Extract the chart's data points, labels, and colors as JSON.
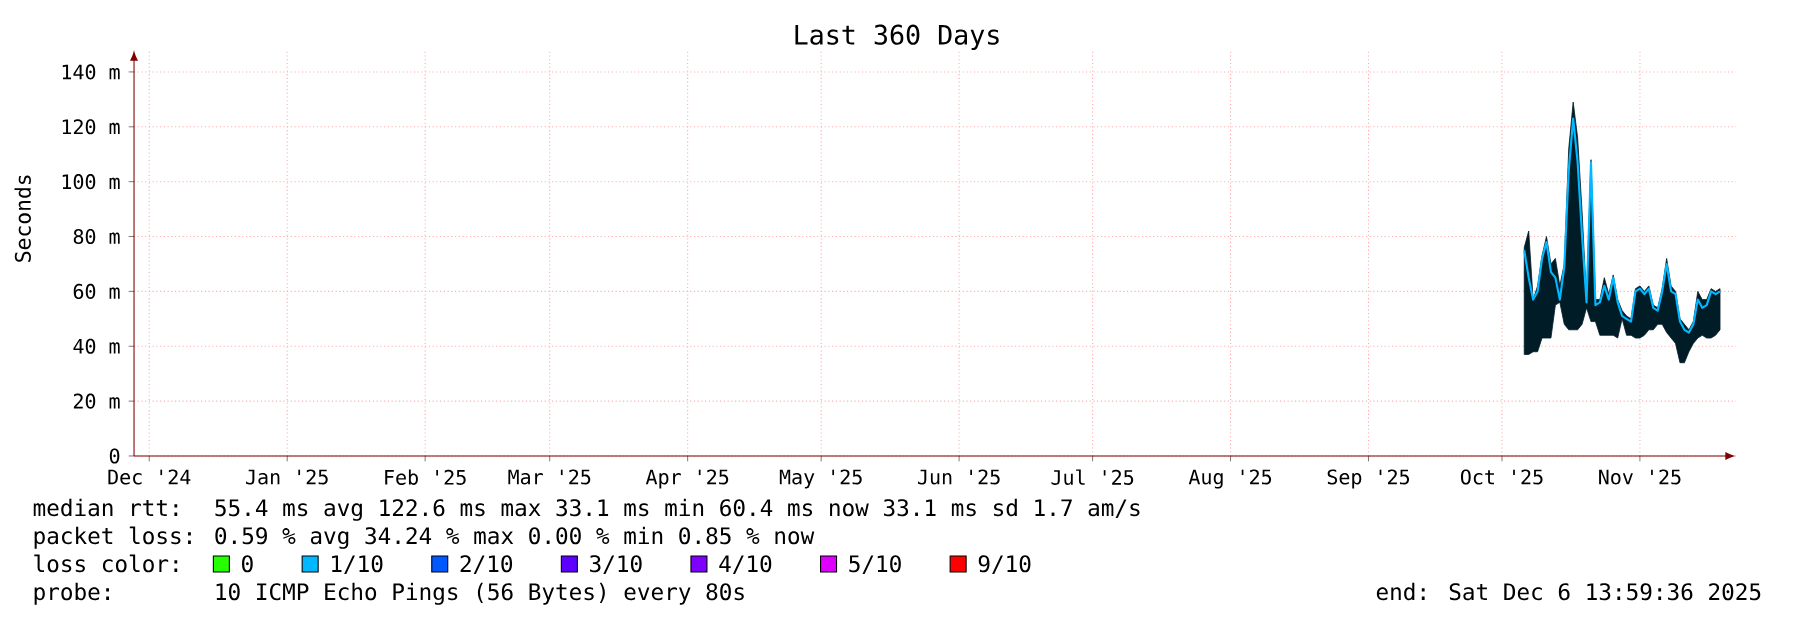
{
  "chart_data": {
    "type": "line",
    "title": "Last 360 Days",
    "ylabel": "Seconds",
    "legend_title": "loss color:",
    "x": [
      "2025-10-20",
      "2025-10-21",
      "2025-10-22",
      "2025-10-23",
      "2025-10-24",
      "2025-10-25",
      "2025-10-26",
      "2025-10-27",
      "2025-10-28",
      "2025-10-29",
      "2025-10-30",
      "2025-10-31",
      "2025-11-01",
      "2025-11-02",
      "2025-11-03",
      "2025-11-04",
      "2025-11-05",
      "2025-11-06",
      "2025-11-07",
      "2025-11-08",
      "2025-11-09",
      "2025-11-10",
      "2025-11-11",
      "2025-11-12",
      "2025-11-13",
      "2025-11-14",
      "2025-11-15",
      "2025-11-16",
      "2025-11-17",
      "2025-11-18",
      "2025-11-19",
      "2025-11-20",
      "2025-11-21",
      "2025-11-22",
      "2025-11-23",
      "2025-11-24",
      "2025-11-25",
      "2025-11-26",
      "2025-11-27",
      "2025-11-28",
      "2025-11-29",
      "2025-11-30",
      "2025-12-01",
      "2025-12-02",
      "2025-12-03"
    ],
    "series": [
      {
        "color": "#00b8ff",
        "values": [
          75,
          65,
          57,
          60,
          72,
          78,
          67,
          65,
          57,
          69,
          104,
          123,
          107,
          80,
          56,
          107,
          55,
          56,
          62,
          57,
          65,
          56,
          51,
          50,
          49,
          60,
          61,
          59,
          61,
          54,
          53,
          60,
          70,
          60,
          59,
          49,
          46,
          45,
          48,
          57,
          54,
          55,
          60,
          59,
          60
        ],
        "lower": [
          37,
          37,
          38,
          38,
          43,
          43,
          43,
          55,
          56,
          48,
          46,
          46,
          46,
          48,
          54,
          49,
          49,
          44,
          44,
          44,
          44,
          43,
          50,
          44,
          44,
          43,
          43,
          44,
          46,
          46,
          48,
          48,
          45,
          43,
          41,
          34,
          34,
          38,
          41,
          43,
          44,
          43,
          43,
          44,
          46
        ],
        "upper": [
          76,
          82,
          57,
          62,
          73,
          80,
          70,
          72,
          62,
          70,
          112,
          129,
          116,
          89,
          57,
          108,
          57,
          57,
          65,
          59,
          66,
          57,
          53,
          51,
          50,
          61,
          62,
          60,
          62,
          55,
          54,
          61,
          72,
          62,
          60,
          50,
          48,
          46,
          49,
          60,
          57,
          57,
          61,
          60,
          61
        ]
      },
      {
        "name": "0",
        "color": "#26ff00",
        "values": [
          null,
          null,
          null,
          null,
          null,
          null,
          null,
          null,
          null,
          null,
          null,
          null,
          null,
          null,
          null,
          null,
          null,
          null,
          null,
          null,
          null,
          null,
          null,
          null,
          null,
          null,
          null,
          null,
          null,
          null,
          null,
          null,
          null,
          null,
          null,
          null,
          null,
          null,
          null,
          null,
          null,
          null,
          null,
          null,
          null
        ]
      },
      {
        "name": "1/10",
        "color": "#00b8ff",
        "values": [
          null,
          null,
          null,
          null,
          null,
          null,
          null,
          null,
          null,
          null,
          null,
          null,
          null,
          null,
          null,
          null,
          null,
          null,
          null,
          null,
          null,
          null,
          null,
          null,
          null,
          null,
          null,
          null,
          null,
          null,
          null,
          null,
          null,
          null,
          null,
          null,
          null,
          null,
          null,
          null,
          null,
          null,
          null,
          null,
          null
        ]
      },
      {
        "name": "2/10",
        "color": "#0059ff",
        "values": [
          null,
          null,
          null,
          null,
          null,
          null,
          null,
          null,
          null,
          null,
          null,
          null,
          null,
          null,
          null,
          null,
          null,
          null,
          null,
          null,
          null,
          null,
          null,
          null,
          null,
          null,
          null,
          null,
          null,
          null,
          null,
          null,
          null,
          null,
          null,
          null,
          null,
          null,
          null,
          null,
          null,
          null,
          null,
          null,
          null
        ]
      },
      {
        "name": "3/10",
        "color": "#5e00ff",
        "values": [
          null,
          null,
          null,
          null,
          null,
          null,
          null,
          null,
          null,
          null,
          null,
          null,
          null,
          null,
          null,
          null,
          null,
          null,
          null,
          null,
          null,
          null,
          null,
          null,
          null,
          null,
          null,
          null,
          null,
          null,
          null,
          null,
          null,
          null,
          null,
          null,
          null,
          null,
          null,
          null,
          null,
          null,
          null,
          null,
          null
        ]
      },
      {
        "name": "4/10",
        "color": "#7e00ff",
        "values": [
          null,
          null,
          null,
          null,
          null,
          null,
          null,
          null,
          null,
          null,
          null,
          null,
          null,
          null,
          null,
          null,
          null,
          null,
          null,
          null,
          null,
          null,
          null,
          null,
          null,
          null,
          null,
          null,
          null,
          null,
          null,
          null,
          null,
          null,
          null,
          null,
          null,
          null,
          null,
          null,
          null,
          null,
          null,
          null,
          null
        ]
      },
      {
        "name": "5/10",
        "color": "#dd00ff",
        "values": [
          null,
          null,
          null,
          null,
          null,
          null,
          null,
          null,
          null,
          null,
          null,
          null,
          null,
          null,
          null,
          null,
          null,
          null,
          null,
          null,
          null,
          null,
          null,
          null,
          null,
          null,
          null,
          null,
          null,
          null,
          null,
          null,
          null,
          null,
          null,
          null,
          null,
          null,
          null,
          null,
          null,
          null,
          null,
          null,
          null
        ]
      },
      {
        "name": "9/10",
        "color": "#ff0000",
        "values": [
          null,
          null,
          null,
          null,
          null,
          null,
          null,
          null,
          null,
          null,
          null,
          null,
          null,
          null,
          null,
          null,
          null,
          null,
          null,
          null,
          null,
          null,
          null,
          null,
          null,
          null,
          null,
          null,
          null,
          null,
          null,
          null,
          null,
          null,
          null,
          null,
          null,
          null,
          null,
          null,
          null,
          null,
          null,
          null,
          null
        ]
      }
    ],
    "xlim": [
      "2024-12-11T14:00",
      "2025-12-06T14:00"
    ],
    "xticks": [
      {
        "value": "2024-12-15",
        "label": "Dec '24"
      },
      {
        "value": "2025-01-15",
        "label": "Jan '25"
      },
      {
        "value": "2025-02-15",
        "label": "Feb '25"
      },
      {
        "value": "2025-03-15",
        "label": "Mar '25"
      },
      {
        "value": "2025-04-15",
        "label": "Apr '25"
      },
      {
        "value": "2025-05-15",
        "label": "May '25"
      },
      {
        "value": "2025-06-15",
        "label": "Jun '25"
      },
      {
        "value": "2025-07-15",
        "label": "Jul '25"
      },
      {
        "value": "2025-08-15",
        "label": "Aug '25"
      },
      {
        "value": "2025-09-15",
        "label": "Sep '25"
      },
      {
        "value": "2025-10-15",
        "label": "Oct '25"
      },
      {
        "value": "2025-11-15",
        "label": "Nov '25"
      }
    ],
    "ylim": [
      0,
      148
    ],
    "yticks": [
      0,
      {
        "value": 20,
        "label": "20 m"
      },
      {
        "value": 40,
        "label": "40 m"
      },
      {
        "value": 60,
        "label": "60 m"
      },
      {
        "value": 80,
        "label": "80 m"
      },
      {
        "value": 100,
        "label": "100 m"
      },
      {
        "value": 120,
        "label": "120 m"
      },
      {
        "value": 140,
        "label": "140 m"
      }
    ],
    "grid": true,
    "legend": "bottom",
    "annotations": [
      "median rtt:",
      "55.4 ms avg  122.6 ms max  33.1 ms min  60.4 ms now  33.1 ms sd  1.7   am/s",
      "packet loss:",
      "0.59 % avg  34.24 % max  0.00 % min  0.85 % now",
      "probe:",
      "10 ICMP Echo Pings (56 Bytes) every 80s",
      "end: Sat Dec  6 13:59:36 2025"
    ]
  }
}
